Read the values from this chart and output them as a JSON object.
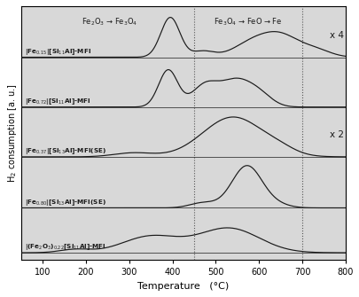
{
  "xlabel": "Temperature   (°C)",
  "ylabel": "H$_2$ consumption [a. u.]",
  "xlim": [
    50,
    800
  ],
  "xticks": [
    100,
    200,
    300,
    400,
    500,
    600,
    700,
    800
  ],
  "vlines": [
    450,
    700
  ],
  "annotation1": "Fe$_2$O$_3$ → Fe$_3$O$_4$",
  "annotation2": "Fe$_3$O$_4$ → FeO → Fe",
  "label1": "|Fe$_{0.15}$|[Si$_{11}$Al]-MFI",
  "label2": "|Fe$_{0.72}$|[Si$_{11}$Al]-MFI",
  "label3": "|Fe$_{0.37}$|[Si$_{13}$Al]-MFI(SE)",
  "label4": "|Fe$_{0.80}$|[Si$_{13}$Al]-MFI(SE)",
  "label5": "|(Fe$_2$O$_3$)$_{0.22}$[Si$_{11}$Al]-MFI",
  "mult1": "x 4",
  "mult3": "x 2",
  "bg_color": "#d8d8d8",
  "line_color": "#1a1a1a",
  "offsets": [
    0.815,
    0.615,
    0.415,
    0.21,
    0.03
  ],
  "curve_scale": [
    0.16,
    0.15,
    0.16,
    0.17,
    0.1
  ]
}
